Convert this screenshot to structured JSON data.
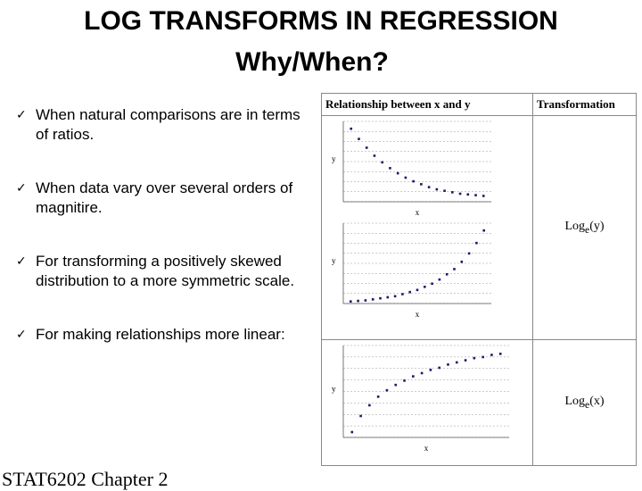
{
  "title": {
    "line1": "LOG TRANSFORMS IN REGRESSION",
    "line2": "Why/When?"
  },
  "bullets": [
    "When natural comparisons are in terms of ratios.",
    "When data vary over several orders of magnitire.",
    "For transforming a positively skewed distribution to a more symmetric scale.",
    "For making relationships more linear:"
  ],
  "table": {
    "headers": [
      "Relationship between x and y",
      "Transformation"
    ],
    "transformations": [
      {
        "base": "Log",
        "sub": "e",
        "arg": "(y)"
      },
      {
        "base": "Log",
        "sub": "e",
        "arg": "(x)"
      }
    ],
    "axis_labels": {
      "x": "x",
      "y": "y"
    }
  },
  "chart_data": [
    {
      "type": "scatter",
      "title": "",
      "xlabel": "x",
      "ylabel": "y",
      "grid": true,
      "x": [
        1,
        2,
        3,
        4,
        5,
        6,
        7,
        8,
        9,
        10,
        11,
        12,
        13,
        14,
        15,
        16,
        17,
        18
      ],
      "y": [
        10.0,
        8.6,
        7.4,
        6.3,
        5.4,
        4.6,
        3.9,
        3.3,
        2.8,
        2.4,
        2.0,
        1.7,
        1.5,
        1.3,
        1.1,
        1.0,
        0.9,
        0.8
      ]
    },
    {
      "type": "scatter",
      "title": "",
      "xlabel": "x",
      "ylabel": "y",
      "grid": true,
      "x": [
        1,
        2,
        3,
        4,
        5,
        6,
        7,
        8,
        9,
        10,
        11,
        12,
        13,
        14,
        15,
        16,
        17,
        18,
        19
      ],
      "y": [
        0.2,
        0.25,
        0.3,
        0.4,
        0.5,
        0.6,
        0.7,
        0.9,
        1.1,
        1.3,
        1.6,
        1.9,
        2.3,
        2.8,
        3.3,
        4.0,
        4.8,
        5.8,
        7.0
      ]
    },
    {
      "type": "scatter",
      "title": "",
      "xlabel": "x",
      "ylabel": "y",
      "grid": true,
      "x": [
        1,
        2,
        3,
        4,
        5,
        6,
        7,
        8,
        9,
        10,
        11,
        12,
        13,
        14,
        15,
        16,
        17,
        18
      ],
      "y": [
        0.5,
        2.0,
        3.0,
        3.8,
        4.4,
        4.9,
        5.3,
        5.7,
        6.0,
        6.3,
        6.5,
        6.8,
        7.0,
        7.2,
        7.4,
        7.5,
        7.7,
        7.8
      ]
    }
  ],
  "footer": "STAT6202 Chapter 2"
}
